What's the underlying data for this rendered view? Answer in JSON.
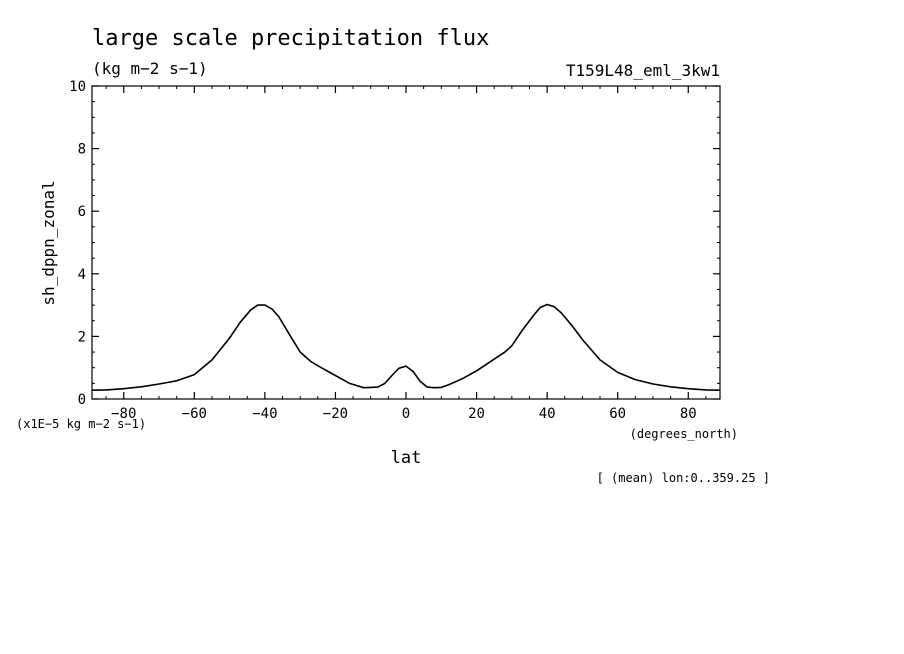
{
  "chart_data": {
    "type": "line",
    "title": "large scale precipitation flux",
    "subtitle": "(kg m−2 s−1)",
    "experiment": "T159L48_eml_3kw1",
    "xlabel": "lat",
    "xunits": "(degrees_north)",
    "ylabel": "sh_dppn_zonal",
    "yunits": "(x1E−5 kg m−2 s−1)",
    "footnote": "[ (mean) lon:0..359.25 ]",
    "xlim": [
      -89,
      89
    ],
    "ylim": [
      0,
      10
    ],
    "x_ticks": [
      -80,
      -60,
      -40,
      -20,
      0,
      20,
      40,
      60,
      80
    ],
    "x_tick_labels": [
      "−80",
      "−60",
      "−40",
      "−20",
      "0",
      "20",
      "40",
      "60",
      "80"
    ],
    "y_ticks": [
      0,
      2,
      4,
      6,
      8,
      10
    ],
    "y_tick_labels": [
      "0",
      "2",
      "4",
      "6",
      "8",
      "10"
    ],
    "grid": false,
    "series": [
      {
        "x": [
          -89,
          -85,
          -80,
          -75,
          -70,
          -65,
          -60,
          -55,
          -50,
          -47,
          -44,
          -42,
          -40,
          -38,
          -36,
          -33,
          -30,
          -27,
          -24,
          -20,
          -16,
          -12,
          -10,
          -8,
          -6,
          -4,
          -2,
          0,
          2,
          4,
          6,
          8,
          10,
          12,
          16,
          20,
          24,
          28,
          30,
          33,
          36,
          38,
          40,
          42,
          44,
          47,
          50,
          55,
          60,
          65,
          70,
          75,
          80,
          85,
          89
        ],
        "y": [
          0.28,
          0.29,
          0.33,
          0.39,
          0.48,
          0.58,
          0.78,
          1.25,
          1.95,
          2.45,
          2.85,
          3.0,
          3.0,
          2.88,
          2.62,
          2.05,
          1.5,
          1.2,
          1.0,
          0.75,
          0.5,
          0.36,
          0.37,
          0.38,
          0.5,
          0.75,
          0.98,
          1.05,
          0.88,
          0.57,
          0.38,
          0.36,
          0.37,
          0.45,
          0.65,
          0.9,
          1.2,
          1.5,
          1.7,
          2.2,
          2.65,
          2.92,
          3.02,
          2.95,
          2.75,
          2.35,
          1.9,
          1.25,
          0.85,
          0.62,
          0.48,
          0.39,
          0.33,
          0.29,
          0.28
        ]
      }
    ]
  }
}
